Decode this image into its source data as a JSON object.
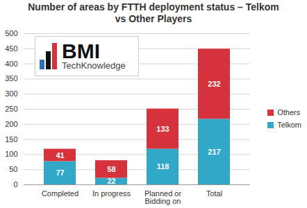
{
  "chart_data": {
    "type": "bar",
    "title": "Number of areas by FTTH deployment status – Telkom vs Other Players",
    "categories": [
      "Completed",
      "In progress",
      "Planned or Bidding on",
      "Total"
    ],
    "series": [
      {
        "name": "Telkom",
        "color": "#31a8c8",
        "values": [
          77,
          22,
          118,
          217
        ]
      },
      {
        "name": "Others",
        "color": "#d5323c",
        "values": [
          41,
          58,
          133,
          232
        ]
      }
    ],
    "stacked": true,
    "data_labels": true,
    "legend": "right",
    "grid": true,
    "ylim": [
      0,
      500
    ],
    "yticks": [
      0,
      50,
      100,
      150,
      200,
      250,
      300,
      350,
      400,
      450,
      500
    ],
    "annotations": [
      "BMI",
      "TechKnowledge"
    ]
  }
}
